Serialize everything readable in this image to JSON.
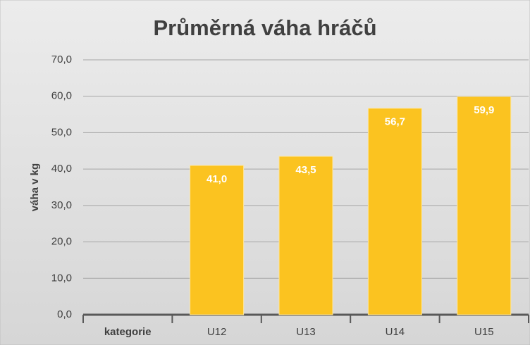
{
  "chart_data": {
    "type": "bar",
    "title": "Průměrná váha hráčů",
    "y_label": "váha v kg",
    "categories": [
      "kategorie",
      "U12",
      "U13",
      "U14",
      "U15"
    ],
    "values": [
      null,
      41.0,
      43.5,
      56.7,
      59.9
    ],
    "value_labels": [
      null,
      "41,0",
      "43,5",
      "56,7",
      "59,9"
    ],
    "color": "#fbc320",
    "ylim": [
      0,
      70
    ],
    "yticks": [
      {
        "value": 0,
        "label": "0,0"
      },
      {
        "value": 10,
        "label": "10,0"
      },
      {
        "value": 20,
        "label": "20,0"
      },
      {
        "value": 30,
        "label": "30,0"
      },
      {
        "value": 40,
        "label": "40,0"
      },
      {
        "value": 50,
        "label": "50,0"
      },
      {
        "value": 60,
        "label": "60,0"
      },
      {
        "value": 70,
        "label": "70,0"
      }
    ],
    "grid": true
  }
}
